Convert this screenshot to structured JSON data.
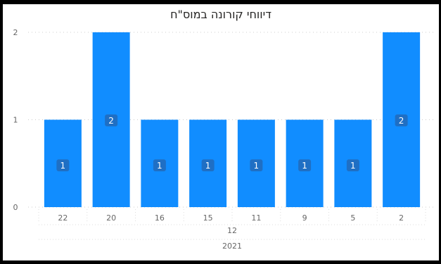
{
  "chart_data": {
    "type": "bar",
    "title": "דיווחי קורונה במוס\"ח",
    "categories": [
      "22",
      "20",
      "16",
      "15",
      "11",
      "9",
      "5",
      "2"
    ],
    "values": [
      1,
      2,
      1,
      1,
      1,
      1,
      1,
      2
    ],
    "data_labels": [
      "1",
      "2",
      "1",
      "1",
      "1",
      "1",
      "1",
      "2"
    ],
    "y_ticks": [
      "0",
      "1",
      "2"
    ],
    "ylim": [
      0,
      2
    ],
    "x_group_month": "12",
    "x_group_year": "2021",
    "xlabel": "",
    "ylabel": "",
    "grid": true,
    "bar_color": "#118DFF",
    "label_bg_color": "#1F6FC4"
  }
}
